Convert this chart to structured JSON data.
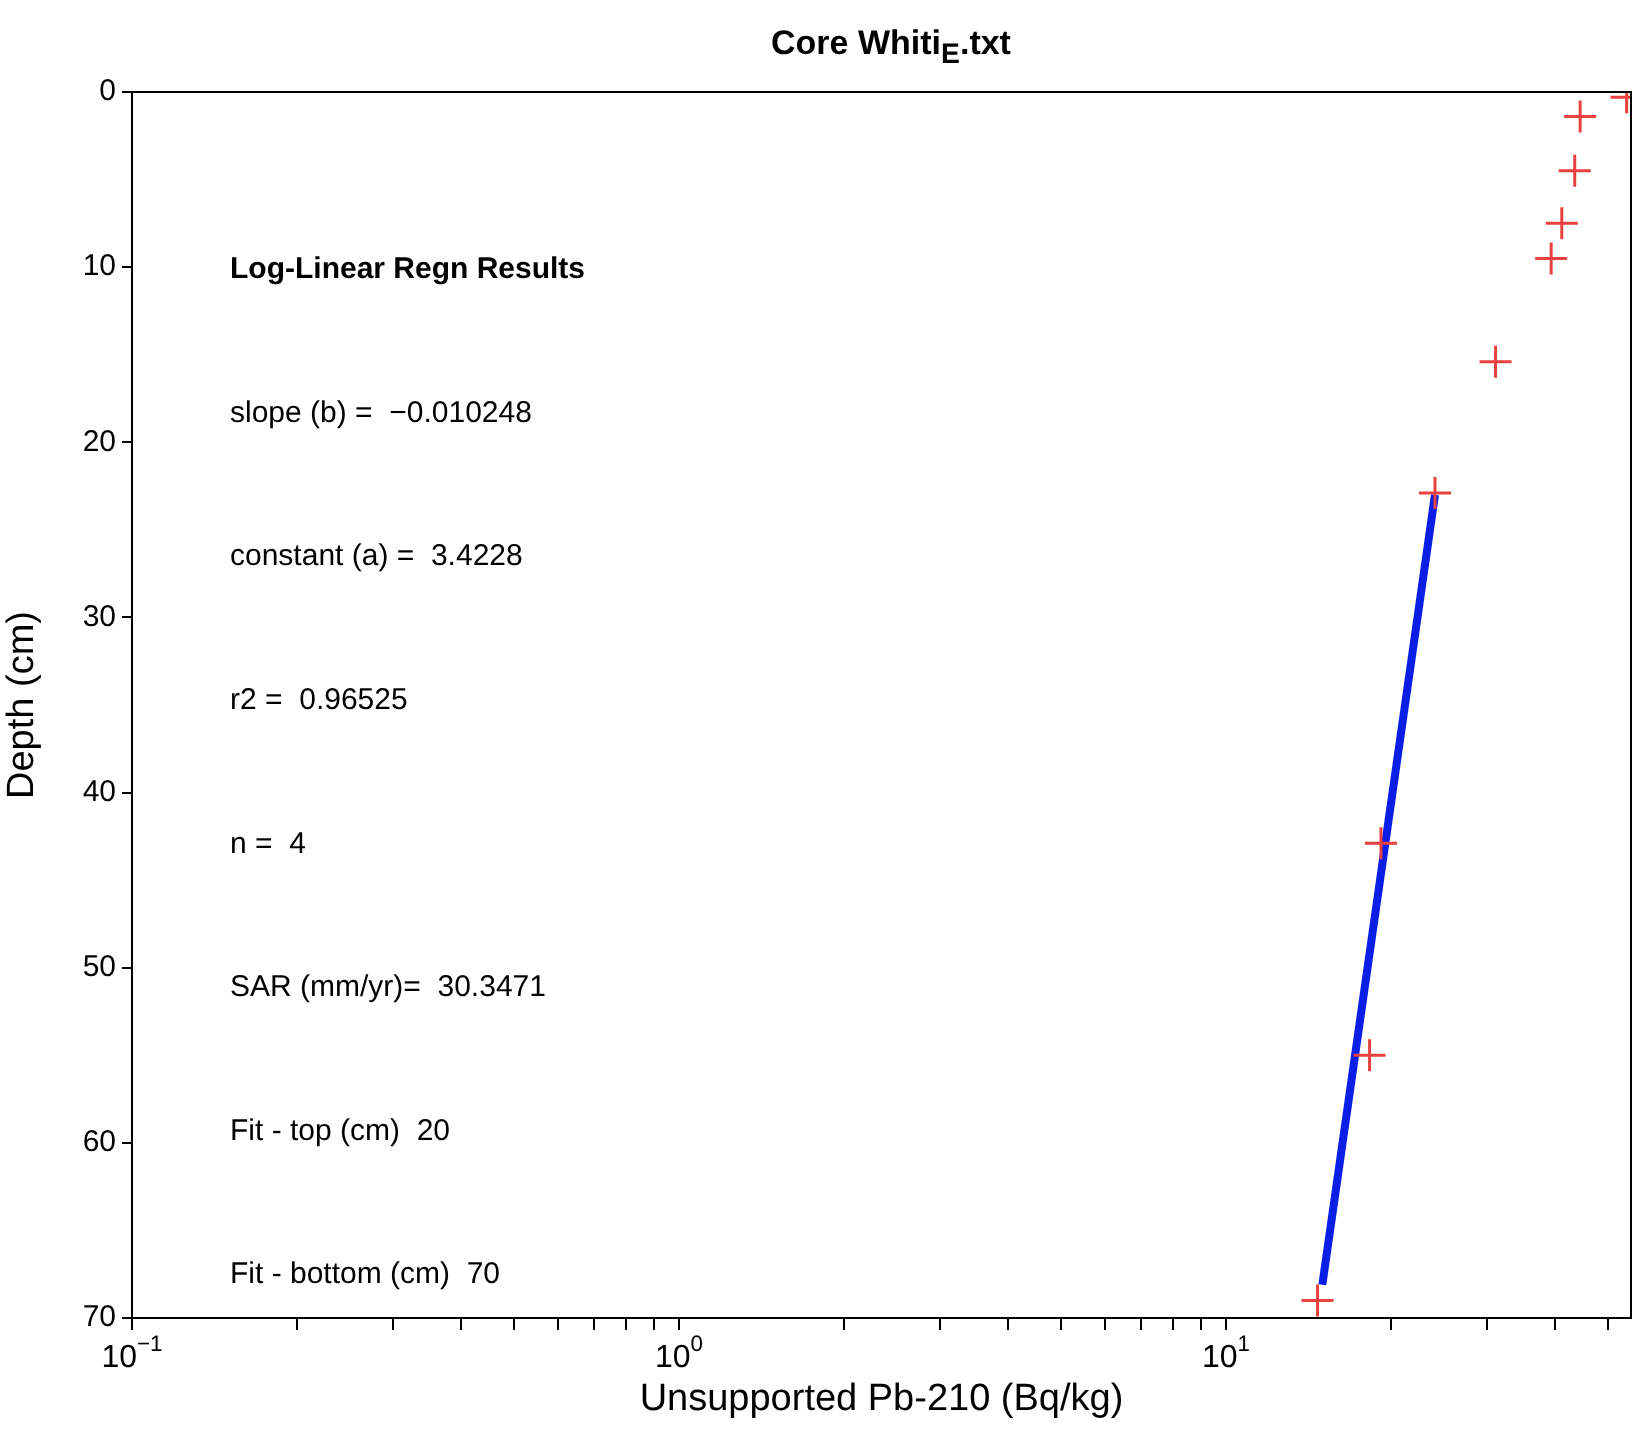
{
  "chart_data": {
    "type": "scatter",
    "title": "Core Whiti$_{E}$.txt",
    "xlabel": "Unsupported Pb-210 (Bq/kg)",
    "ylabel": "Depth (cm)",
    "log": "x",
    "grid": false,
    "legend": false,
    "marker": "cross",
    "xlim": [
      0.1,
      55
    ],
    "ylim": [
      70,
      0
    ],
    "xticks": [
      {
        "value": 0.1,
        "label": "10$^{−1}$"
      },
      {
        "value": 0.2,
        "label": null
      },
      {
        "value": 0.3,
        "label": null
      },
      {
        "value": 0.4,
        "label": null
      },
      {
        "value": 0.5,
        "label": null
      },
      {
        "value": 0.6,
        "label": null
      },
      {
        "value": 0.7,
        "label": null
      },
      {
        "value": 0.8,
        "label": null
      },
      {
        "value": 0.9,
        "label": null
      },
      {
        "value": 1,
        "label": "10$^{0}$"
      },
      {
        "value": 2,
        "label": null
      },
      {
        "value": 3,
        "label": null
      },
      {
        "value": 4,
        "label": null
      },
      {
        "value": 5,
        "label": null
      },
      {
        "value": 6,
        "label": null
      },
      {
        "value": 7,
        "label": null
      },
      {
        "value": 8,
        "label": null
      },
      {
        "value": 9,
        "label": null
      },
      {
        "value": 10,
        "label": "10$^{1}$"
      },
      {
        "value": 20,
        "label": null
      },
      {
        "value": 30,
        "label": null
      },
      {
        "value": 40,
        "label": null
      },
      {
        "value": 50,
        "label": null
      }
    ],
    "yticks": [
      0,
      10,
      20,
      30,
      40,
      50,
      60,
      70
    ],
    "series": [
      {
        "color": "#e8413f",
        "x": [
          54,
          44.4,
          43.4,
          41.1,
          39.3,
          31.1,
          24.1,
          19.2,
          18.3,
          14.7
        ],
        "values": [
          0.3,
          1.4,
          4.5,
          7.5,
          9.5,
          15.4,
          22.9,
          42.9,
          55.0,
          69
        ]
      },
      {
        "type": "line",
        "color": "#0a1ee6",
        "line_style": "solid",
        "marker": "none",
        "x": [
          24.1,
          15.0
        ],
        "values": [
          23,
          68.1
        ]
      }
    ],
    "annotations": [
      "Log-Linear Regn Results",
      "slope (b) =  −0.010248",
      "constant (a) =  3.4228",
      "r2 =  0.96525",
      "n =  4",
      "SAR (mm/yr)=  30.3471",
      "Fit - top (cm)  20",
      "Fit - bottom (cm)  70"
    ]
  }
}
